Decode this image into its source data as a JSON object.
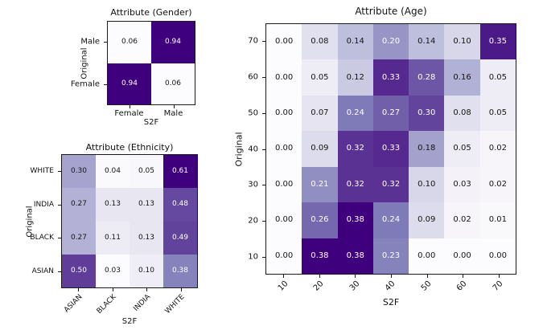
{
  "figure": {
    "background": "#ffffff",
    "spine_color": "#1a1a1a"
  },
  "colormap": {
    "name": "Purples",
    "anchors": [
      "#fcfbfd",
      "#efedf5",
      "#dadaeb",
      "#bcbddc",
      "#9e9ac8",
      "#807dba",
      "#6a51a3",
      "#54278f",
      "#3f007d"
    ]
  },
  "text_colors": {
    "dark": "#151515",
    "light": "#ffffff"
  },
  "chart_data": [
    {
      "type": "heatmap",
      "title": "Attribute (Gender)",
      "xlabel": "S2F",
      "ylabel": "Original",
      "rows": [
        "Male",
        "Female"
      ],
      "cols": [
        "Female",
        "Male"
      ],
      "values": [
        [
          0.06,
          0.94
        ],
        [
          0.94,
          0.06
        ]
      ],
      "x_tick_rotation": 0,
      "value_decimals": 2,
      "grid": false,
      "legend": "none"
    },
    {
      "type": "heatmap",
      "title": "Attribute (Ethnicity)",
      "xlabel": "S2F",
      "ylabel": "Original",
      "rows": [
        "WHITE",
        "INDIA",
        "BLACK",
        "ASIAN"
      ],
      "cols": [
        "ASIAN",
        "BLACK",
        "INDIA",
        "WHITE"
      ],
      "values": [
        [
          0.3,
          0.04,
          0.05,
          0.61
        ],
        [
          0.27,
          0.13,
          0.13,
          0.48
        ],
        [
          0.27,
          0.11,
          0.13,
          0.49
        ],
        [
          0.5,
          0.03,
          0.1,
          0.38
        ]
      ],
      "x_tick_rotation": 45,
      "value_decimals": 2,
      "grid": false,
      "legend": "none"
    },
    {
      "type": "heatmap",
      "title": "Attribute (Age)",
      "xlabel": "S2F",
      "ylabel": "Original",
      "rows": [
        "70",
        "60",
        "50",
        "40",
        "30",
        "20",
        "10"
      ],
      "cols": [
        "10",
        "20",
        "30",
        "40",
        "50",
        "60",
        "70"
      ],
      "values": [
        [
          0.0,
          0.08,
          0.14,
          0.2,
          0.14,
          0.1,
          0.35
        ],
        [
          0.0,
          0.05,
          0.12,
          0.33,
          0.28,
          0.16,
          0.05
        ],
        [
          0.0,
          0.07,
          0.24,
          0.27,
          0.3,
          0.08,
          0.05
        ],
        [
          0.0,
          0.09,
          0.32,
          0.33,
          0.18,
          0.05,
          0.02
        ],
        [
          0.0,
          0.21,
          0.32,
          0.32,
          0.1,
          0.03,
          0.02
        ],
        [
          0.0,
          0.26,
          0.38,
          0.24,
          0.09,
          0.02,
          0.01
        ],
        [
          0.0,
          0.38,
          0.38,
          0.23,
          0.0,
          0.0,
          0.0
        ]
      ],
      "x_tick_rotation": 45,
      "value_decimals": 2,
      "grid": false,
      "legend": "none"
    }
  ]
}
